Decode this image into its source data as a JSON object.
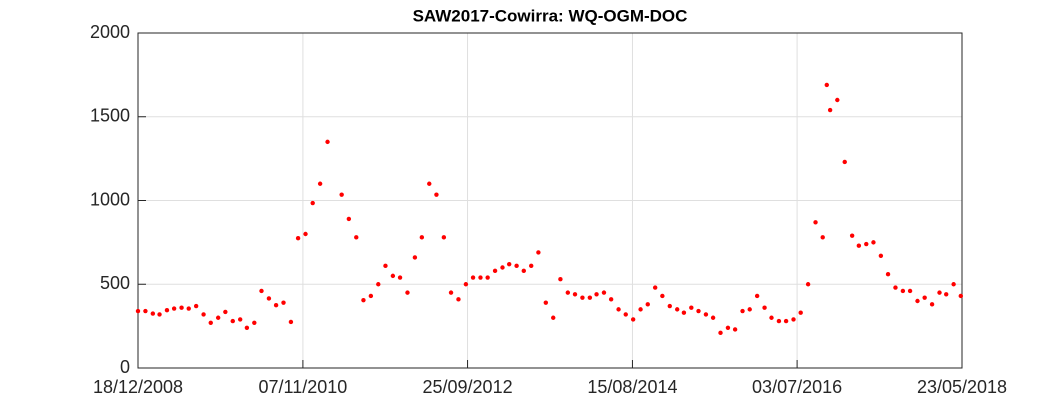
{
  "chart_data": {
    "type": "scatter",
    "title": "SAW2017-Cowirra: WQ-OGM-DOC",
    "x": [
      "18/12/2008",
      "18/01/2009",
      "18/02/2009",
      "18/03/2009",
      "18/04/2009",
      "18/05/2009",
      "18/06/2009",
      "18/07/2009",
      "18/08/2009",
      "18/09/2009",
      "18/10/2009",
      "18/11/2009",
      "18/12/2009",
      "18/01/2010",
      "18/02/2010",
      "18/03/2010",
      "18/04/2010",
      "18/05/2010",
      "18/06/2010",
      "18/07/2010",
      "18/08/2010",
      "18/09/2010",
      "18/10/2010",
      "18/11/2010",
      "18/12/2010",
      "18/01/2011",
      "18/02/2011",
      "18/04/2011",
      "18/05/2011",
      "18/06/2011",
      "18/07/2011",
      "18/08/2011",
      "18/09/2011",
      "18/10/2011",
      "18/11/2011",
      "18/12/2011",
      "18/01/2012",
      "18/02/2012",
      "18/03/2012",
      "18/04/2012",
      "18/05/2012",
      "18/06/2012",
      "18/07/2012",
      "18/08/2012",
      "18/09/2012",
      "18/10/2012",
      "18/11/2012",
      "18/12/2012",
      "18/01/2013",
      "18/02/2013",
      "18/03/2013",
      "18/04/2013",
      "18/05/2013",
      "18/06/2013",
      "18/07/2013",
      "18/08/2013",
      "18/09/2013",
      "18/10/2013",
      "18/11/2013",
      "18/12/2013",
      "18/01/2014",
      "18/02/2014",
      "18/03/2014",
      "18/04/2014",
      "18/05/2014",
      "18/06/2014",
      "18/07/2014",
      "18/08/2014",
      "18/09/2014",
      "18/10/2014",
      "18/11/2014",
      "18/12/2014",
      "18/01/2015",
      "18/02/2015",
      "18/03/2015",
      "18/04/2015",
      "18/05/2015",
      "18/06/2015",
      "18/07/2015",
      "18/08/2015",
      "18/09/2015",
      "18/10/2015",
      "18/11/2015",
      "18/12/2015",
      "18/01/2016",
      "18/02/2016",
      "18/03/2016",
      "18/04/2016",
      "18/05/2016",
      "18/06/2016",
      "18/07/2016",
      "18/08/2016",
      "18/09/2016",
      "18/10/2016",
      "04/11/2016",
      "18/11/2016",
      "18/12/2016",
      "18/01/2017",
      "18/02/2017",
      "18/03/2017",
      "18/04/2017",
      "18/05/2017",
      "18/06/2017",
      "18/07/2017",
      "18/08/2017",
      "18/09/2017",
      "18/10/2017",
      "18/11/2017",
      "18/12/2017",
      "18/01/2018",
      "18/02/2018",
      "18/03/2018",
      "18/04/2018",
      "18/05/2018"
    ],
    "values": [
      340,
      340,
      325,
      320,
      345,
      355,
      360,
      355,
      370,
      320,
      270,
      300,
      335,
      280,
      290,
      240,
      270,
      460,
      415,
      375,
      390,
      275,
      775,
      800,
      985,
      1100,
      1350,
      1035,
      890,
      780,
      405,
      430,
      500,
      610,
      550,
      540,
      450,
      660,
      780,
      1100,
      1035,
      780,
      450,
      410,
      500,
      540,
      540,
      540,
      580,
      600,
      620,
      610,
      580,
      610,
      690,
      390,
      300,
      530,
      450,
      440,
      420,
      420,
      440,
      450,
      410,
      350,
      320,
      290,
      350,
      380,
      480,
      430,
      370,
      350,
      330,
      360,
      340,
      320,
      300,
      210,
      240,
      230,
      340,
      350,
      430,
      360,
      300,
      280,
      280,
      290,
      330,
      500,
      870,
      780,
      1690,
      1540,
      1600,
      1230,
      790,
      730,
      740,
      750,
      670,
      560,
      480,
      460,
      460,
      400,
      420,
      380,
      450,
      440,
      500,
      430
    ],
    "color": "#ff0000",
    "xlim": [
      "18/12/2008",
      "23/05/2018"
    ],
    "xticks": [
      "18/12/2008",
      "07/11/2010",
      "25/09/2012",
      "15/08/2014",
      "03/07/2016",
      "23/05/2018"
    ],
    "ylim": [
      0,
      2000
    ],
    "yticks": [
      0,
      500,
      1000,
      1500,
      2000
    ],
    "grid": true
  }
}
